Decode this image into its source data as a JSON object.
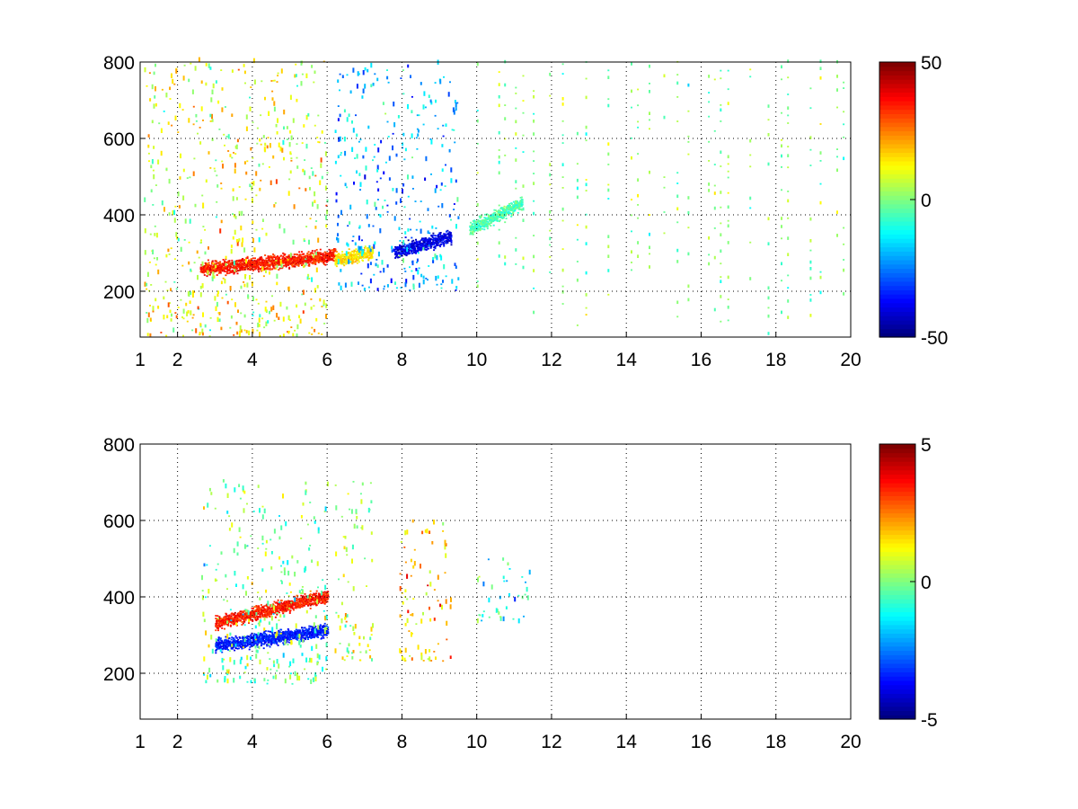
{
  "chart_data": [
    {
      "type": "heatmap",
      "title": "",
      "xlabel": "",
      "ylabel": "",
      "xlim": [
        1,
        20
      ],
      "ylim": [
        80,
        800
      ],
      "x_ticks": [
        1,
        2,
        4,
        6,
        8,
        10,
        12,
        14,
        16,
        18,
        20
      ],
      "x_tick_labels": [
        "1",
        "2",
        "4",
        "6",
        "8",
        "10",
        "12",
        "14",
        "16",
        "18",
        "20"
      ],
      "y_ticks": [
        200,
        400,
        600,
        800
      ],
      "y_tick_labels": [
        "200",
        "400",
        "600",
        "800"
      ],
      "grid": true,
      "colormap": "jet",
      "clim": [
        -50,
        50
      ],
      "colorbar_ticks": [
        -50,
        0,
        50
      ],
      "colorbar_tick_labels": [
        "-50",
        "0",
        "50"
      ],
      "features": [
        {
          "kind": "band",
          "x_range": [
            2.6,
            6.2
          ],
          "y_start": 255,
          "y_end": 290,
          "value": 35
        },
        {
          "kind": "band",
          "x_range": [
            6.2,
            7.2
          ],
          "y_start": 280,
          "y_end": 300,
          "value": 15
        },
        {
          "kind": "band",
          "x_range": [
            7.8,
            9.3
          ],
          "y_start": 300,
          "y_end": 340,
          "value": -40
        },
        {
          "kind": "band",
          "x_range": [
            9.8,
            11.2
          ],
          "y_start": 360,
          "y_end": 430,
          "value": -5
        },
        {
          "kind": "diffuse",
          "x_range": [
            1.1,
            6.0
          ],
          "y_range": [
            80,
            800
          ],
          "value": 10
        },
        {
          "kind": "diffuse",
          "x_range": [
            6.2,
            9.5
          ],
          "y_range": [
            200,
            800
          ],
          "value": -20
        },
        {
          "kind": "stripes",
          "x_range": [
            10,
            20
          ],
          "y_range": [
            80,
            800
          ],
          "value": 0
        }
      ]
    },
    {
      "type": "heatmap",
      "title": "",
      "xlabel": "",
      "ylabel": "",
      "xlim": [
        1,
        20
      ],
      "ylim": [
        80,
        800
      ],
      "x_ticks": [
        1,
        2,
        4,
        6,
        8,
        10,
        12,
        14,
        16,
        18,
        20
      ],
      "x_tick_labels": [
        "1",
        "2",
        "4",
        "6",
        "8",
        "10",
        "12",
        "14",
        "16",
        "18",
        "20"
      ],
      "y_ticks": [
        200,
        400,
        600,
        800
      ],
      "y_tick_labels": [
        "200",
        "400",
        "600",
        "800"
      ],
      "grid": true,
      "colormap": "jet",
      "clim": [
        -5,
        5
      ],
      "colorbar_ticks": [
        -5,
        0,
        5
      ],
      "colorbar_tick_labels": [
        "-5",
        "0",
        "5"
      ],
      "features": [
        {
          "kind": "band",
          "x_range": [
            3.0,
            6.0
          ],
          "y_start": 330,
          "y_end": 400,
          "value": 3.5
        },
        {
          "kind": "band",
          "x_range": [
            3.0,
            6.0
          ],
          "y_start": 270,
          "y_end": 310,
          "value": -3.5
        },
        {
          "kind": "diffuse",
          "x_range": [
            2.6,
            6.0
          ],
          "y_range": [
            170,
            700
          ],
          "value": 0
        },
        {
          "kind": "diffuse",
          "x_range": [
            7.9,
            9.3
          ],
          "y_range": [
            230,
            600
          ],
          "value": 1.8
        },
        {
          "kind": "diffuse",
          "x_range": [
            6.2,
            7.2
          ],
          "y_range": [
            230,
            700
          ],
          "value": 0.5
        },
        {
          "kind": "diffuse",
          "x_range": [
            10.0,
            11.4
          ],
          "y_range": [
            330,
            500
          ],
          "value": -1
        }
      ]
    }
  ]
}
